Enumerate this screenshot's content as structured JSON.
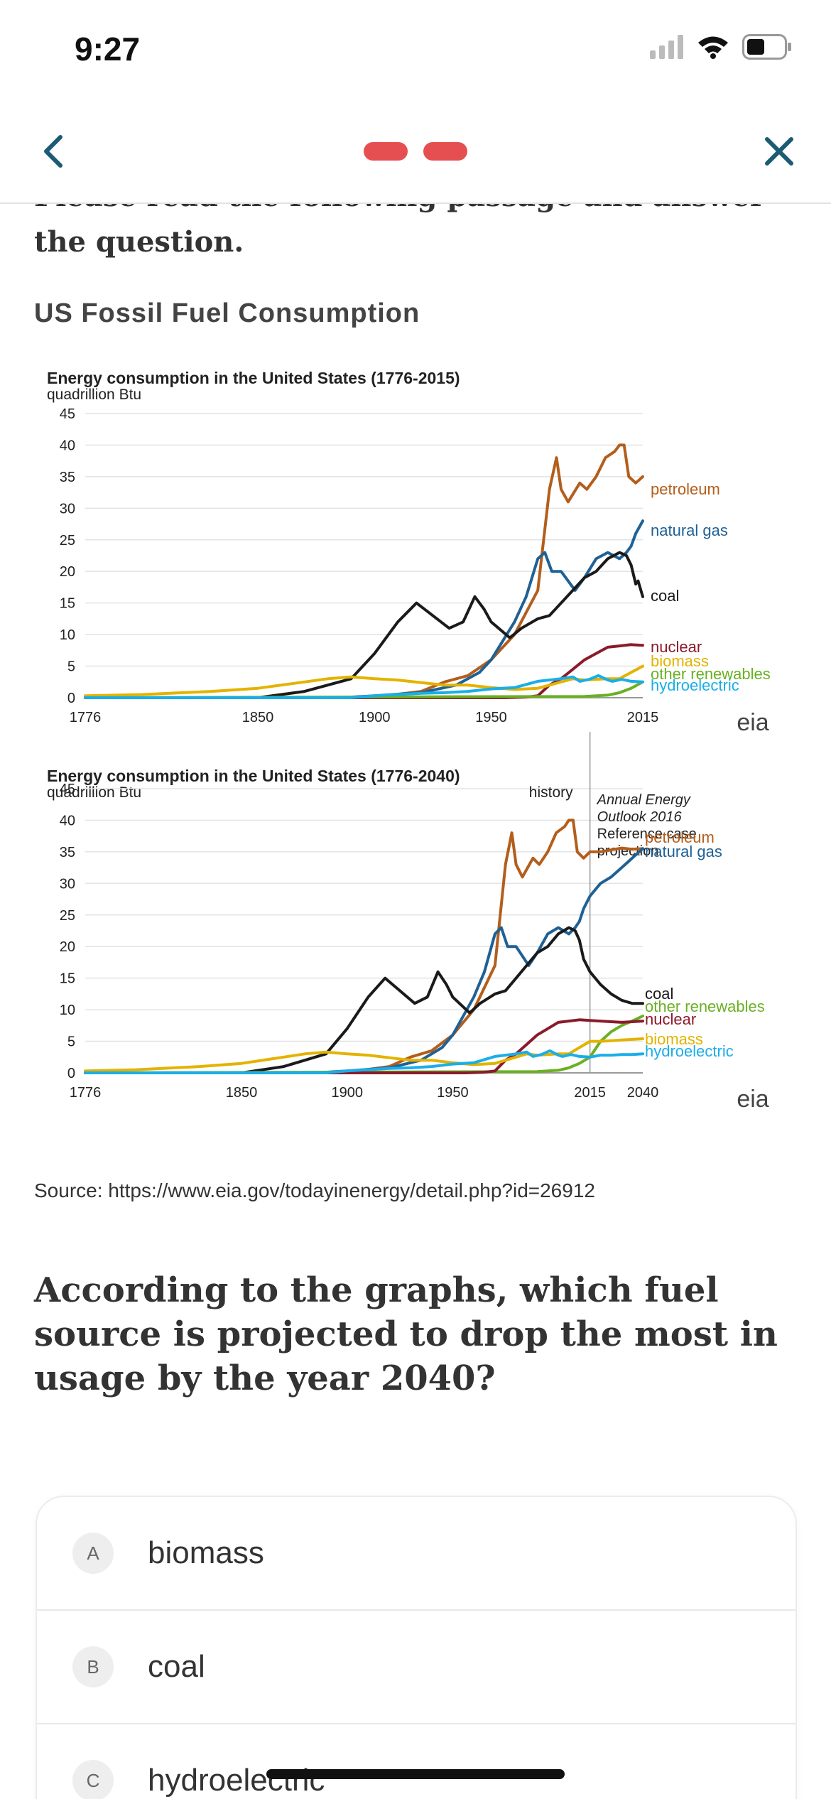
{
  "status": {
    "time": "9:27",
    "icons": [
      "cellular-signal-icon",
      "wifi-icon",
      "battery-icon"
    ]
  },
  "nav": {
    "back_icon": "chevron-left-icon",
    "close_icon": "close-icon",
    "progress_steps": 2,
    "accent": "#e64f52"
  },
  "passage": {
    "intro": "Please read the following passage and answer the question.",
    "title": "US Fossil Fuel Consumption",
    "source": "Source: https://www.eia.gov/todayinenergy/detail.php?id=26912"
  },
  "chart_data": [
    {
      "type": "line",
      "title": "Energy consumption in the United States (1776-2015)",
      "ylabel": "quadrillion Btu",
      "ylim": [
        0,
        45
      ],
      "xlim": [
        1776,
        2015
      ],
      "yticks": [
        "45",
        "40",
        "35",
        "30",
        "25",
        "20",
        "15",
        "10",
        "5",
        "0"
      ],
      "xticks": [
        "1776",
        "1850",
        "1900",
        "1950",
        "2015"
      ],
      "logo": "eia",
      "series": [
        {
          "name": "petroleum",
          "color": "#b35e1c",
          "x": [
            1776,
            1880,
            1900,
            1920,
            1930,
            1940,
            1950,
            1960,
            1970,
            1975,
            1978,
            1980,
            1983,
            1988,
            1991,
            1995,
            1999,
            2003,
            2005,
            2007,
            2009,
            2012,
            2015
          ],
          "y": [
            0,
            0,
            0.1,
            1,
            2.5,
            3.5,
            6,
            10,
            17,
            33,
            38,
            33,
            31,
            34,
            33,
            35,
            38,
            39,
            40,
            40,
            35,
            34,
            35
          ]
        },
        {
          "name": "natural gas",
          "color": "#1f6195",
          "x": [
            1776,
            1885,
            1900,
            1920,
            1935,
            1945,
            1950,
            1960,
            1965,
            1970,
            1973,
            1976,
            1980,
            1986,
            1990,
            1995,
            2000,
            2005,
            2008,
            2010,
            2012,
            2015
          ],
          "y": [
            0,
            0,
            0.3,
            0.8,
            2,
            4,
            6,
            12,
            16,
            22,
            23,
            20,
            20,
            17,
            19,
            22,
            23,
            22,
            23,
            24,
            26,
            28
          ]
        },
        {
          "name": "coal",
          "color": "#1a1a1a",
          "x": [
            1776,
            1850,
            1870,
            1890,
            1900,
            1910,
            1918,
            1925,
            1932,
            1938,
            1943,
            1947,
            1950,
            1958,
            1963,
            1970,
            1975,
            1980,
            1985,
            1990,
            1995,
            2000,
            2005,
            2008,
            2010,
            2012,
            2013,
            2015
          ],
          "y": [
            0,
            0,
            1,
            3,
            7,
            12,
            15,
            13,
            11,
            12,
            16,
            14,
            12,
            9.5,
            11,
            12.5,
            13,
            15,
            17,
            19,
            20,
            22,
            23,
            22.5,
            21,
            18,
            18.5,
            16
          ]
        },
        {
          "name": "nuclear",
          "color": "#8b1a2b",
          "x": [
            1776,
            1956,
            1965,
            1970,
            1975,
            1980,
            1985,
            1990,
            1995,
            2000,
            2005,
            2010,
            2015
          ],
          "y": [
            0,
            0,
            0.1,
            0.3,
            2,
            3,
            4.5,
            6,
            7,
            8,
            8.2,
            8.4,
            8.3
          ]
        },
        {
          "name": "biomass",
          "color": "#e3b300",
          "x": [
            1776,
            1800,
            1830,
            1850,
            1870,
            1880,
            1890,
            1900,
            1910,
            1920,
            1930,
            1940,
            1950,
            1960,
            1970,
            1980,
            1985,
            1990,
            2000,
            2005,
            2010,
            2015
          ],
          "y": [
            0.3,
            0.5,
            1,
            1.5,
            2.5,
            3,
            3.3,
            3,
            2.8,
            2.4,
            2,
            2,
            1.6,
            1.3,
            1.5,
            2.5,
            3,
            2.8,
            3,
            3,
            4,
            5
          ]
        },
        {
          "name": "other renewables",
          "color": "#6ab023",
          "x": [
            1776,
            1990,
            2000,
            2005,
            2010,
            2015
          ],
          "y": [
            0,
            0.2,
            0.4,
            0.8,
            1.5,
            2.5
          ]
        },
        {
          "name": "hydroelectric",
          "color": "#1aaee8",
          "x": [
            1776,
            1890,
            1900,
            1920,
            1930,
            1940,
            1950,
            1960,
            1970,
            1980,
            1985,
            1988,
            1992,
            1996,
            2000,
            2002,
            2006,
            2010,
            2015
          ],
          "y": [
            0,
            0,
            0.3,
            0.7,
            0.8,
            1,
            1.4,
            1.6,
            2.6,
            3,
            3.3,
            2.6,
            2.9,
            3.5,
            2.8,
            2.6,
            2.9,
            2.6,
            2.5
          ]
        }
      ]
    },
    {
      "type": "line",
      "title": "Energy consumption in the United States (1776-2040)",
      "ylabel": "quadrillion Btu",
      "ylim": [
        0,
        45
      ],
      "xlim": [
        1776,
        2040
      ],
      "yticks": [
        "45",
        "40",
        "35",
        "30",
        "25",
        "20",
        "15",
        "10",
        "5",
        "0"
      ],
      "xticks": [
        "1776",
        "1850",
        "1900",
        "1950",
        "2015",
        "2040"
      ],
      "logo": "eia",
      "annotations": {
        "history": "history",
        "projection_label": [
          "Annual Energy",
          "Outlook 2016",
          "Reference case",
          "projection"
        ],
        "divider_year": 2015
      },
      "series": [
        {
          "name": "petroleum",
          "color": "#b35e1c",
          "x": [
            1776,
            1880,
            1900,
            1920,
            1930,
            1940,
            1950,
            1960,
            1970,
            1975,
            1978,
            1980,
            1983,
            1988,
            1991,
            1995,
            1999,
            2003,
            2005,
            2007,
            2009,
            2012,
            2015,
            2020,
            2025,
            2030,
            2035,
            2040
          ],
          "y": [
            0,
            0,
            0.1,
            1,
            2.5,
            3.5,
            6,
            10,
            17,
            33,
            38,
            33,
            31,
            34,
            33,
            35,
            38,
            39,
            40,
            40,
            35,
            34,
            35,
            35,
            35.3,
            35.6,
            35.4,
            35.5
          ]
        },
        {
          "name": "natural gas",
          "color": "#1f6195",
          "x": [
            1776,
            1885,
            1900,
            1920,
            1935,
            1945,
            1950,
            1960,
            1965,
            1970,
            1973,
            1976,
            1980,
            1986,
            1990,
            1995,
            2000,
            2005,
            2008,
            2010,
            2012,
            2015,
            2020,
            2025,
            2030,
            2035,
            2040
          ],
          "y": [
            0,
            0,
            0.3,
            0.8,
            2,
            4,
            6,
            12,
            16,
            22,
            23,
            20,
            20,
            17,
            19,
            22,
            23,
            22,
            23,
            24,
            26,
            28,
            30,
            31,
            32.5,
            34,
            35.5
          ]
        },
        {
          "name": "coal",
          "color": "#1a1a1a",
          "x": [
            1776,
            1850,
            1870,
            1890,
            1900,
            1910,
            1918,
            1925,
            1932,
            1938,
            1943,
            1947,
            1950,
            1958,
            1963,
            1970,
            1975,
            1980,
            1985,
            1990,
            1995,
            2000,
            2005,
            2008,
            2010,
            2012,
            2015,
            2020,
            2025,
            2030,
            2035,
            2040
          ],
          "y": [
            0,
            0,
            1,
            3,
            7,
            12,
            15,
            13,
            11,
            12,
            16,
            14,
            12,
            9.5,
            11,
            12.5,
            13,
            15,
            17,
            19,
            20,
            22,
            23,
            22.5,
            21,
            18,
            16,
            14,
            12.5,
            11.5,
            11,
            11
          ]
        },
        {
          "name": "other renewables",
          "color": "#6ab023",
          "x": [
            1776,
            1990,
            2000,
            2005,
            2010,
            2015,
            2020,
            2025,
            2030,
            2035,
            2040
          ],
          "y": [
            0,
            0.2,
            0.4,
            0.8,
            1.5,
            2.5,
            5,
            6.5,
            7.5,
            8.2,
            9
          ]
        },
        {
          "name": "nuclear",
          "color": "#8b1a2b",
          "x": [
            1776,
            1956,
            1965,
            1970,
            1975,
            1980,
            1985,
            1990,
            1995,
            2000,
            2005,
            2010,
            2015,
            2020,
            2025,
            2030,
            2035,
            2040
          ],
          "y": [
            0,
            0,
            0.1,
            0.3,
            2,
            3,
            4.5,
            6,
            7,
            8,
            8.2,
            8.4,
            8.3,
            8.2,
            8.1,
            8,
            8.1,
            8.2
          ]
        },
        {
          "name": "biomass",
          "color": "#e3b300",
          "x": [
            1776,
            1800,
            1830,
            1850,
            1870,
            1880,
            1890,
            1900,
            1910,
            1920,
            1930,
            1940,
            1950,
            1960,
            1970,
            1980,
            1985,
            1990,
            2000,
            2005,
            2010,
            2015,
            2020,
            2025,
            2030,
            2035,
            2040
          ],
          "y": [
            0.3,
            0.5,
            1,
            1.5,
            2.5,
            3,
            3.3,
            3,
            2.8,
            2.4,
            2,
            2,
            1.6,
            1.3,
            1.5,
            2.5,
            3,
            2.8,
            3,
            3,
            4,
            5,
            5,
            5.1,
            5.2,
            5.3,
            5.4
          ]
        },
        {
          "name": "hydroelectric",
          "color": "#1aaee8",
          "x": [
            1776,
            1890,
            1900,
            1920,
            1930,
            1940,
            1950,
            1960,
            1970,
            1980,
            1985,
            1988,
            1992,
            1996,
            2000,
            2002,
            2006,
            2010,
            2015,
            2020,
            2025,
            2030,
            2035,
            2040
          ],
          "y": [
            0,
            0,
            0.3,
            0.7,
            0.8,
            1,
            1.4,
            1.6,
            2.6,
            3,
            3.3,
            2.6,
            2.9,
            3.5,
            2.8,
            2.6,
            2.9,
            2.6,
            2.5,
            2.8,
            2.8,
            2.9,
            2.9,
            3
          ]
        }
      ]
    }
  ],
  "question": {
    "text": "According to the graphs, which fuel source is projected to drop the most in usage by the year 2040?",
    "answers": [
      {
        "letter": "A",
        "label": "biomass"
      },
      {
        "letter": "B",
        "label": "coal"
      },
      {
        "letter": "C",
        "label": "hydroelectric"
      }
    ]
  }
}
